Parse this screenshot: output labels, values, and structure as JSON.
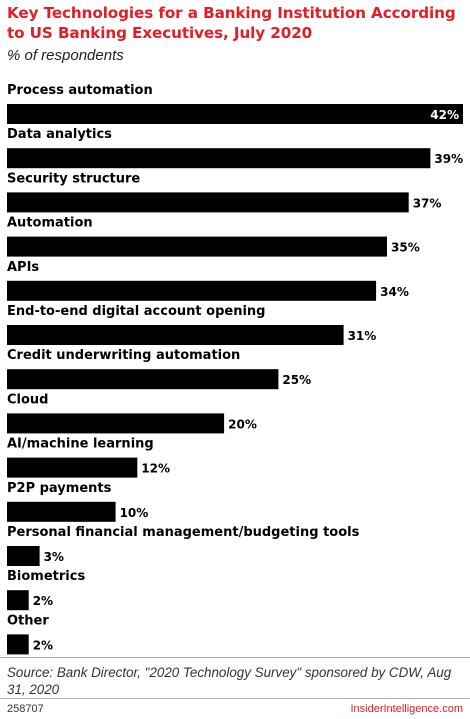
{
  "title": "Key Technologies for a Banking Institution According to US Banking Executives, July 2020",
  "subtitle": "% of respondents",
  "source": "Source: Bank Director, \"2020 Technology Survey\" sponsored by CDW, Aug 31, 2020",
  "footer_id": "258707",
  "brand": "InsiderIntelligence.com",
  "colors": {
    "title": "#e31c25",
    "bar": "#000000",
    "label_inside": "#ffffff",
    "label_outside": "#000000"
  },
  "chart_data": {
    "type": "bar",
    "orientation": "horizontal",
    "categories": [
      "Process automation",
      "Data analytics",
      "Security structure",
      "Automation",
      "APIs",
      "End-to-end digital account opening",
      "Credit underwriting automation",
      "Cloud",
      "AI/machine learning",
      "P2P payments",
      "Personal financial management/budgeting tools",
      "Biometrics",
      "Other"
    ],
    "values": [
      42,
      39,
      37,
      35,
      34,
      31,
      25,
      20,
      12,
      10,
      3,
      2,
      2
    ],
    "value_labels": [
      "42%",
      "39%",
      "37%",
      "35%",
      "34%",
      "31%",
      "25%",
      "20%",
      "12%",
      "10%",
      "3%",
      "2%",
      "2%"
    ],
    "unit": "%",
    "xlim": [
      0,
      42
    ],
    "grid": false,
    "legend": "none"
  }
}
